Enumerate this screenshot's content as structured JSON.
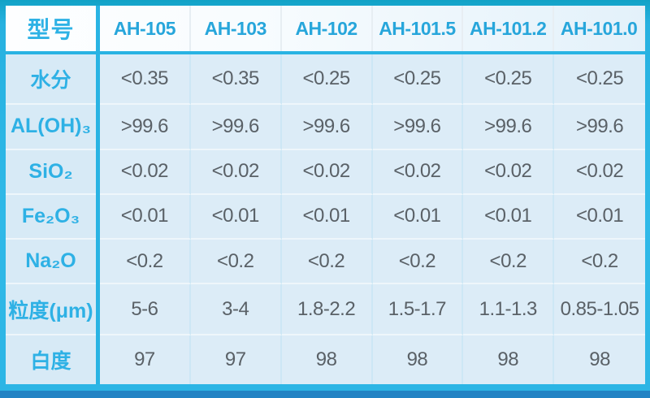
{
  "chart_data": {
    "type": "table",
    "title": "",
    "corner_label": "型号",
    "columns": [
      "AH-105",
      "AH-103",
      "AH-102",
      "AH-101.5",
      "AH-101.2",
      "AH-101.0"
    ],
    "rows": [
      {
        "label": "水分",
        "values": [
          "<0.35",
          "<0.35",
          "<0.25",
          "<0.25",
          "<0.25",
          "<0.25"
        ]
      },
      {
        "label": "AL(OH)₃",
        "values": [
          ">99.6",
          ">99.6",
          ">99.6",
          ">99.6",
          ">99.6",
          ">99.6"
        ]
      },
      {
        "label": "SiO₂",
        "values": [
          "<0.02",
          "<0.02",
          "<0.02",
          "<0.02",
          "<0.02",
          "<0.02"
        ]
      },
      {
        "label": "Fe₂O₃",
        "values": [
          "<0.01",
          "<0.01",
          "<0.01",
          "<0.01",
          "<0.01",
          "<0.01"
        ]
      },
      {
        "label": "Na₂O",
        "values": [
          "<0.2",
          "<0.2",
          "<0.2",
          "<0.2",
          "<0.2",
          "<0.2"
        ]
      },
      {
        "label": "粒度(μm)",
        "values": [
          "5-6",
          "3-4",
          "1.8-2.2",
          "1.5-1.7",
          "1.1-1.3",
          "0.85-1.05"
        ]
      },
      {
        "label": "白度",
        "values": [
          "97",
          "97",
          "98",
          "98",
          "98",
          "98"
        ]
      }
    ],
    "layout": {
      "grid": true,
      "header_position": "top-row-and-left-column"
    }
  },
  "colors": {
    "accent_cyan": "#2cb5e5",
    "top_border": "#11a2c6",
    "bottom_dark_strip": "#2383c4",
    "header_text": "#27a6db",
    "label_text": "#2eb1e5",
    "value_text": "#5a6167",
    "cell_background": "#dcecf7",
    "header_background": "#ffffff"
  }
}
